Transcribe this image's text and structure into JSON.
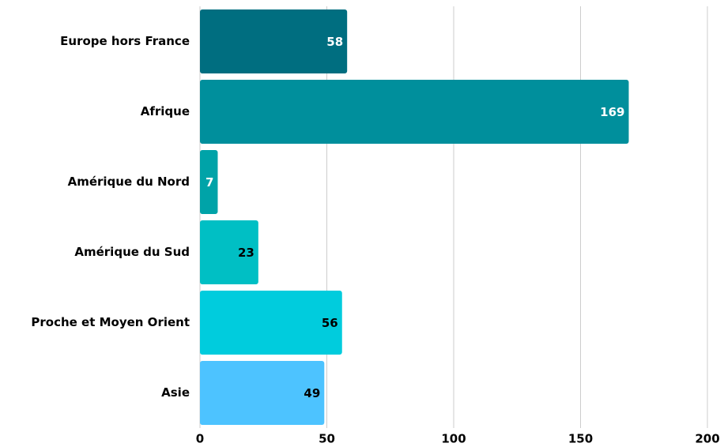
{
  "chart_data": {
    "type": "bar",
    "orientation": "horizontal",
    "categories": [
      "Europe hors France",
      "Afrique",
      "Amérique du Nord",
      "Amérique du Sud",
      "Proche et Moyen Orient",
      "Asie"
    ],
    "values": [
      58,
      169,
      7,
      23,
      56,
      49
    ],
    "colors": [
      "#006e80",
      "#008f9c",
      "#00a3a8",
      "#00bfc4",
      "#00ccdd",
      "#4dc3ff"
    ],
    "label_colors": [
      "#ffffff",
      "#ffffff",
      "#ffffff",
      "#000000",
      "#000000",
      "#000000"
    ],
    "xlim": [
      0,
      200
    ],
    "xticks": [
      0,
      50,
      100,
      150,
      200
    ],
    "grid": true
  }
}
